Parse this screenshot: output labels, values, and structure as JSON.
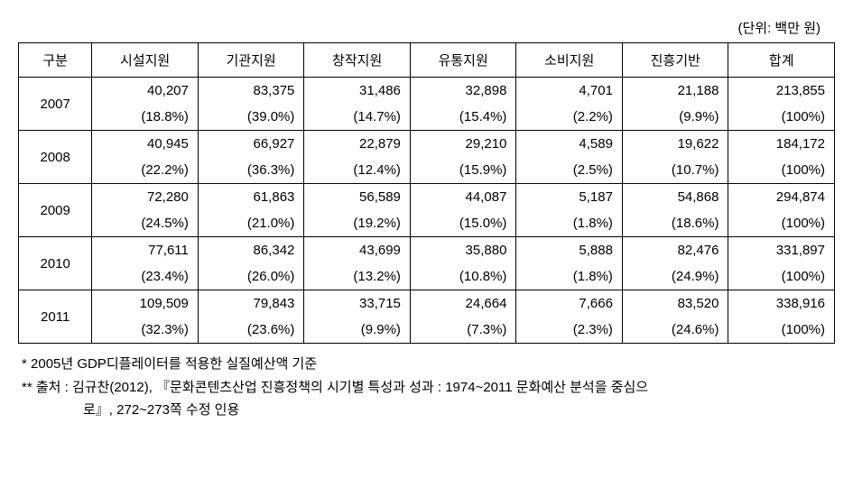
{
  "unit_label": "(단위: 백만 원)",
  "columns": [
    "구분",
    "시설지원",
    "기관지원",
    "창작지원",
    "유통지원",
    "소비지원",
    "진흥기반",
    "합계"
  ],
  "rows": [
    {
      "year": "2007",
      "values": [
        "40,207",
        "83,375",
        "31,486",
        "32,898",
        "4,701",
        "21,188",
        "213,855"
      ],
      "pcts": [
        "(18.8%)",
        "(39.0%)",
        "(14.7%)",
        "(15.4%)",
        "(2.2%)",
        "(9.9%)",
        "(100%)"
      ]
    },
    {
      "year": "2008",
      "values": [
        "40,945",
        "66,927",
        "22,879",
        "29,210",
        "4,589",
        "19,622",
        "184,172"
      ],
      "pcts": [
        "(22.2%)",
        "(36.3%)",
        "(12.4%)",
        "(15.9%)",
        "(2.5%)",
        "(10.7%)",
        "(100%)"
      ]
    },
    {
      "year": "2009",
      "values": [
        "72,280",
        "61,863",
        "56,589",
        "44,087",
        "5,187",
        "54,868",
        "294,874"
      ],
      "pcts": [
        "(24.5%)",
        "(21.0%)",
        "(19.2%)",
        "(15.0%)",
        "(1.8%)",
        "(18.6%)",
        "(100%)"
      ]
    },
    {
      "year": "2010",
      "values": [
        "77,611",
        "86,342",
        "43,699",
        "35,880",
        "5,888",
        "82,476",
        "331,897"
      ],
      "pcts": [
        "(23.4%)",
        "(26.0%)",
        "(13.2%)",
        "(10.8%)",
        "(1.8%)",
        "(24.9%)",
        "(100%)"
      ]
    },
    {
      "year": "2011",
      "values": [
        "109,509",
        "79,843",
        "33,715",
        "24,664",
        "7,666",
        "83,520",
        "338,916"
      ],
      "pcts": [
        "(32.3%)",
        "(23.6%)",
        "(9.9%)",
        "(7.3%)",
        "(2.3%)",
        "(24.6%)",
        "(100%)"
      ]
    }
  ],
  "footnote1": "* 2005년 GDP디플레이터를 적용한 실질예산액 기준",
  "footnote2a": "** 출처 : 김규찬(2012), 『문화콘텐츠산업 진흥정책의 시기별 특성과 성과 : 1974~2011 문화예산 분석을 중심으",
  "footnote2b": "로』, 272~273쪽 수정 인용",
  "table_style": {
    "type": "table",
    "border_color": "#000000",
    "background_color": "#ffffff",
    "text_color": "#000000",
    "font_size_pt": 11,
    "cell_align_header": "center",
    "cell_align_year": "center",
    "cell_align_data": "right"
  }
}
